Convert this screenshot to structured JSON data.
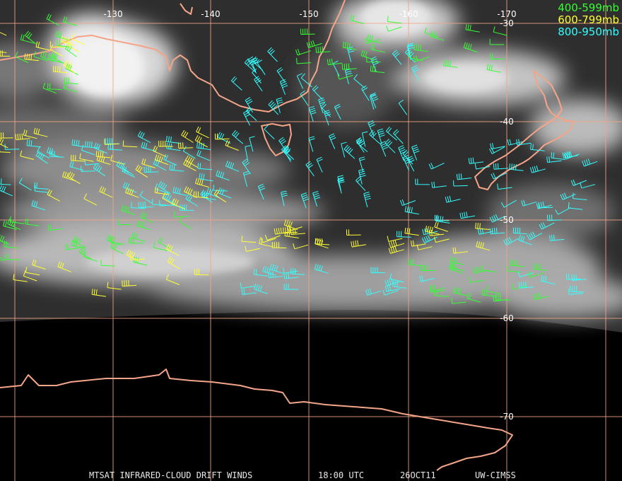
{
  "map": {
    "longitude_labels": [
      "-130",
      "-140",
      "-150",
      "-160",
      "-170"
    ],
    "latitude_labels": [
      "-30",
      "-40",
      "-50",
      "-60",
      "-70"
    ]
  },
  "legend": [
    "400-599mb",
    "600-799mb",
    "800-950mb"
  ],
  "footer": [
    "MTSAT INFRARED-CLOUD DRIFT WINDS",
    "18:00 UTC",
    "26OCT11",
    "UW-CIMSS"
  ]
}
